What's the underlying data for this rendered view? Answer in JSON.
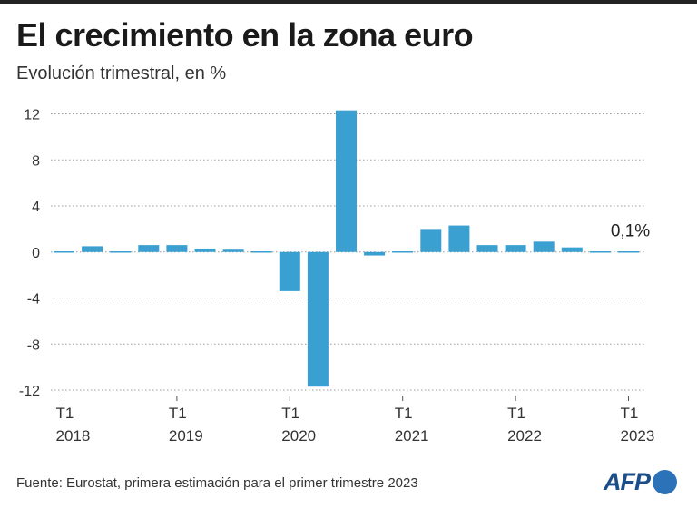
{
  "header": {
    "title": "El crecimiento en la zona euro",
    "subtitle": "Evolución trimestral, en %"
  },
  "chart_data": {
    "type": "bar",
    "title": "El crecimiento en la zona euro",
    "subtitle": "Evolución trimestral, en %",
    "ylabel": "%",
    "ylim": [
      -12,
      12
    ],
    "yticks": [
      12,
      8,
      4,
      0,
      -4,
      -8,
      -12
    ],
    "grid": true,
    "bar_color": "#3a9fd1",
    "categories": [
      "T1 2018",
      "T2 2018",
      "T3 2018",
      "T4 2018",
      "T1 2019",
      "T2 2019",
      "T3 2019",
      "T4 2019",
      "T1 2020",
      "T2 2020",
      "T3 2020",
      "T4 2020",
      "T1 2021",
      "T2 2021",
      "T3 2021",
      "T4 2021",
      "T1 2022",
      "T2 2022",
      "T3 2022",
      "T4 2022",
      "T1 2023"
    ],
    "values": [
      -0.1,
      0.5,
      -0.1,
      0.6,
      0.6,
      0.3,
      0.2,
      -0.1,
      -3.4,
      -11.7,
      12.3,
      -0.3,
      -0.1,
      2.0,
      2.3,
      0.6,
      0.6,
      0.9,
      0.4,
      -0.1,
      0.1
    ],
    "x_tick_labels": [
      {
        "index": 0,
        "quarter": "T1",
        "year": "2018"
      },
      {
        "index": 4,
        "quarter": "T1",
        "year": "2019"
      },
      {
        "index": 8,
        "quarter": "T1",
        "year": "2020"
      },
      {
        "index": 12,
        "quarter": "T1",
        "year": "2021"
      },
      {
        "index": 16,
        "quarter": "T1",
        "year": "2022"
      },
      {
        "index": 20,
        "quarter": "T1",
        "year": "2023"
      }
    ],
    "annotation": {
      "index": 20,
      "text": "0,1%"
    }
  },
  "footer": {
    "source": "Fuente: Eurostat, primera estimación para el primer trimestre 2023",
    "logo_text": "AFP"
  }
}
